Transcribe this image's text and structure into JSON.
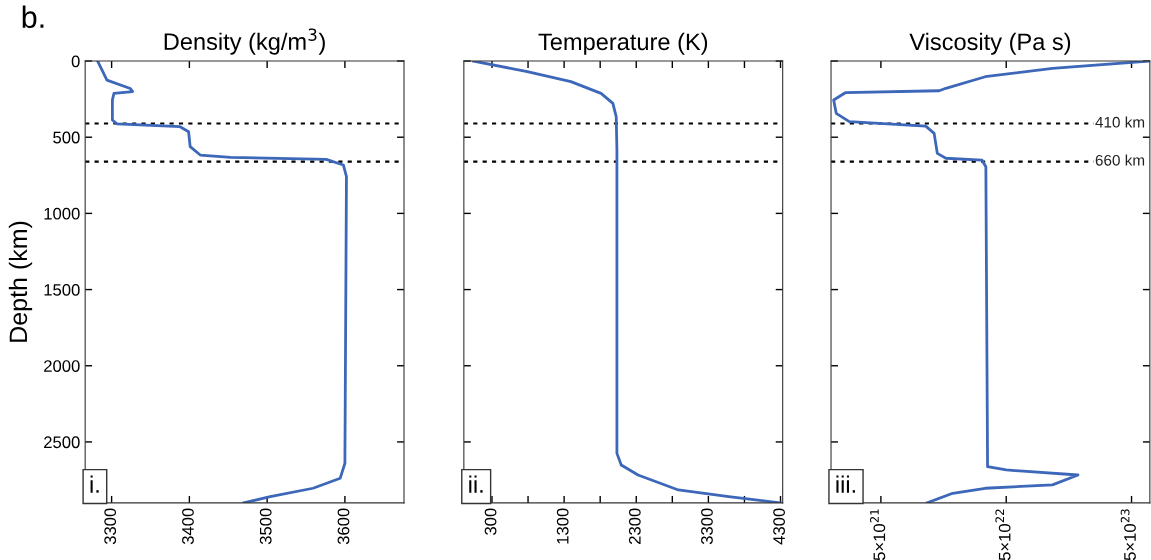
{
  "chart_data": [
    {
      "type": "line",
      "title": "Density (kg/m$^{3}$)",
      "ylabel": "Depth (km)",
      "annotations": [
        "i.",
        "b."
      ],
      "xlim": [
        3266,
        3676
      ],
      "xticks": [
        3300,
        3400,
        3500,
        3600
      ],
      "ylim": [
        2900,
        0
      ],
      "yticks": [
        0,
        500,
        1000,
        1500,
        2000,
        2500
      ],
      "grid": false,
      "legend": false,
      "line_style": "solid",
      "series": [
        {
          "color": "#3d67b8",
          "x": [
            3282,
            3294,
            3324,
            3327,
            3303,
            3301,
            3301,
            3307,
            3388,
            3399,
            3401,
            3414,
            3453,
            3576,
            3598,
            3602,
            3600,
            3594,
            3559,
            3504,
            3470
          ],
          "values": [
            0,
            125,
            180,
            200,
            212,
            256,
            387,
            413,
            431,
            464,
            562,
            617,
            632,
            645,
            682,
            759,
            2640,
            2738,
            2804,
            2859,
            2900
          ]
        }
      ],
      "ref_lines": [
        {
          "axis": "y",
          "value": 410,
          "label": null,
          "color": "#000000",
          "line_style": "dotted"
        },
        {
          "axis": "y",
          "value": 660,
          "label": null,
          "color": "#000000",
          "line_style": "dotted"
        }
      ]
    },
    {
      "type": "line",
      "title": "Temperature (K)",
      "annotations": [
        "ii."
      ],
      "xlim": [
        -90,
        4330
      ],
      "xticks": [
        300,
        {
          "value": 800,
          "label": null
        },
        1300,
        {
          "value": 1800,
          "label": null
        },
        2300,
        {
          "value": 2800,
          "label": null
        },
        3300,
        {
          "value": 3800,
          "label": null
        },
        4300
      ],
      "ylim": [
        2900,
        0
      ],
      "yticks": [
        0,
        500,
        1000,
        1500,
        2000,
        2500
      ],
      "tick_labels": "x",
      "grid": false,
      "legend": false,
      "line_style": "solid",
      "series": [
        {
          "color": "#3d67b8",
          "x": [
            43,
            789,
            1394,
            1812,
            1976,
            2022,
            2032,
            2032,
            2092,
            2325,
            2884,
            3582,
            4300
          ],
          "values": [
            0,
            70,
            135,
            212,
            278,
            365,
            584,
            2575,
            2651,
            2717,
            2815,
            2859,
            2900
          ]
        }
      ],
      "ref_lines": [
        {
          "axis": "y",
          "value": 410,
          "label": null,
          "color": "#000000",
          "line_style": "dotted"
        },
        {
          "axis": "y",
          "value": 660,
          "label": null,
          "color": "#000000",
          "line_style": "dotted"
        }
      ]
    },
    {
      "type": "line",
      "title": "Viscosity (Pa s)",
      "annotations": [
        "iii."
      ],
      "log": "x",
      "xlim": [
        2e+21,
        7e+23
      ],
      "xticks": [
        {
          "value": 5e+21,
          "label": "5×10$^{21}$"
        },
        {
          "value": 5e+22,
          "label": "5×10$^{22}$"
        },
        {
          "value": 5e+23,
          "label": "5×10$^{23}$"
        }
      ],
      "ylim": [
        2900,
        0
      ],
      "yticks": [
        0,
        500,
        1000,
        1500,
        2000,
        2500
      ],
      "tick_labels": "x",
      "grid": false,
      "legend": false,
      "line_style": "solid",
      "series": [
        {
          "color": "#3d67b8",
          "x": [
            6.9e+23,
            1.17e+23,
            3.4e+22,
            1.65e+22,
            1.46e+22,
            2.6e+21,
            2.1e+21,
            2.2e+21,
            2.8e+21,
            1.14e+22,
            1.33e+22,
            1.41e+22,
            1.65e+22,
            3.2e+22,
            3.44e+22,
            3.55e+22,
            5e+22,
            1.87e+23,
            1.17e+23,
            3.4e+22,
            1.87e+22,
            1.17e+22
          ],
          "values": [
            0,
            48,
            103,
            179,
            195,
            208,
            256,
            343,
            398,
            427,
            475,
            606,
            638,
            650,
            694,
            2662,
            2684,
            2717,
            2782,
            2804,
            2837,
            2900
          ]
        }
      ],
      "ref_lines": [
        {
          "axis": "y",
          "value": 410,
          "label": "410 km",
          "color": "#000000",
          "line_style": "dotted"
        },
        {
          "axis": "y",
          "value": 660,
          "label": "660 km",
          "color": "#000000",
          "line_style": "dotted"
        }
      ]
    }
  ]
}
